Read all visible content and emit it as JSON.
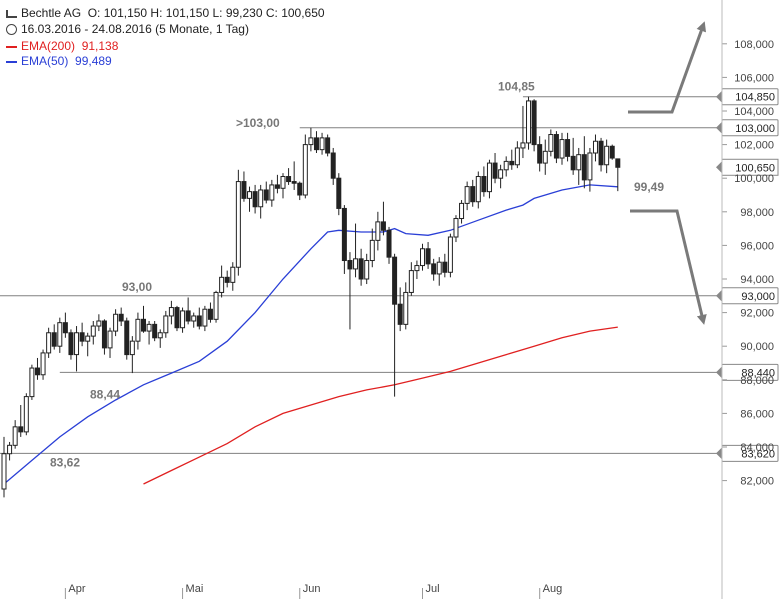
{
  "header": {
    "symbol": "Bechtle AG",
    "ohlc": "O: 101,150  H: 101,150  L: 99,230  C: 100,650",
    "range": "16.03.2016 - 24.08.2016 (5 Monate, 1 Tag)",
    "ema200_label": "EMA(200)",
    "ema200_value": "91,138",
    "ema50_label": "EMA(50)",
    "ema50_value": "99,489"
  },
  "chart_data": {
    "type": "candlestick",
    "ylim": [
      82,
      109
    ],
    "y_ticks": [
      "108,000",
      "106,000",
      "104,000",
      "102,000",
      "100,000",
      "98,000",
      "96,000",
      "94,000",
      "92,000",
      "90,000",
      "88,000",
      "86,000",
      "84,000",
      "82,000"
    ],
    "months": [
      "Apr",
      "Mai",
      "Jun",
      "Jul",
      "Aug"
    ],
    "hlines": [
      {
        "label": "104,850",
        "value": 104.85
      },
      {
        "label": "103,000",
        "value": 103.0
      },
      {
        "label": "93,000",
        "value": 93.0
      },
      {
        "label": "88,440",
        "value": 88.44
      },
      {
        "label": "83,620",
        "value": 83.62
      }
    ],
    "last_price": "100,650",
    "annotations": [
      "104,85",
      ">103,00",
      "93,00",
      "88,44",
      "83,62",
      "99,49"
    ],
    "colors": {
      "ema200": "#e02020",
      "ema50": "#2a3fd6",
      "candle": "#222222",
      "line": "#808080",
      "arrow": "#7a7a7a"
    },
    "candles": [
      [
        81.5,
        84.6,
        81.0,
        83.6
      ],
      [
        83.6,
        84.3,
        83.2,
        84.1
      ],
      [
        84.1,
        85.6,
        83.9,
        85.2
      ],
      [
        85.2,
        86.5,
        84.6,
        84.9
      ],
      [
        84.9,
        87.2,
        84.7,
        87.0
      ],
      [
        87.0,
        88.9,
        86.8,
        88.7
      ],
      [
        88.7,
        89.3,
        88.0,
        88.3
      ],
      [
        88.3,
        89.8,
        88.0,
        89.6
      ],
      [
        89.6,
        91.1,
        89.3,
        90.8
      ],
      [
        90.8,
        91.3,
        89.8,
        90.0
      ],
      [
        90.0,
        91.7,
        89.6,
        91.4
      ],
      [
        91.4,
        92.0,
        90.5,
        90.8
      ],
      [
        90.8,
        91.0,
        89.2,
        89.5
      ],
      [
        89.5,
        91.2,
        88.5,
        90.8
      ],
      [
        90.8,
        91.4,
        90.0,
        90.3
      ],
      [
        90.3,
        90.8,
        89.4,
        90.6
      ],
      [
        90.6,
        91.5,
        90.1,
        91.2
      ],
      [
        91.2,
        91.9,
        90.9,
        91.5
      ],
      [
        91.5,
        91.6,
        89.5,
        89.9
      ],
      [
        89.9,
        91.1,
        89.3,
        90.9
      ],
      [
        90.9,
        92.2,
        90.6,
        91.9
      ],
      [
        91.9,
        92.3,
        91.2,
        91.5
      ],
      [
        91.5,
        91.7,
        89.2,
        89.5
      ],
      [
        89.5,
        90.6,
        88.4,
        90.3
      ],
      [
        90.3,
        92.0,
        89.8,
        91.6
      ],
      [
        91.6,
        92.4,
        90.8,
        90.9
      ],
      [
        90.9,
        91.5,
        90.1,
        91.3
      ],
      [
        91.3,
        91.5,
        90.3,
        90.5
      ],
      [
        90.5,
        91.0,
        89.9,
        90.8
      ],
      [
        90.8,
        92.1,
        90.5,
        91.8
      ],
      [
        91.8,
        92.7,
        91.3,
        92.3
      ],
      [
        92.3,
        92.4,
        90.9,
        91.1
      ],
      [
        91.1,
        92.3,
        90.8,
        92.1
      ],
      [
        92.1,
        92.9,
        91.3,
        91.5
      ],
      [
        91.5,
        92.0,
        91.1,
        91.8
      ],
      [
        91.8,
        92.3,
        91.0,
        91.2
      ],
      [
        91.2,
        92.4,
        90.9,
        92.2
      ],
      [
        92.2,
        92.6,
        91.4,
        91.6
      ],
      [
        91.6,
        93.3,
        91.4,
        93.2
      ],
      [
        93.2,
        94.8,
        92.9,
        94.1
      ],
      [
        94.1,
        94.5,
        93.5,
        93.8
      ],
      [
        93.8,
        95.0,
        93.3,
        94.7
      ],
      [
        94.7,
        100.5,
        94.2,
        99.8
      ],
      [
        99.8,
        100.4,
        98.6,
        98.8
      ],
      [
        98.8,
        99.5,
        98.0,
        99.2
      ],
      [
        99.2,
        99.6,
        97.9,
        98.3
      ],
      [
        98.3,
        99.6,
        97.6,
        99.3
      ],
      [
        99.3,
        99.8,
        98.5,
        98.7
      ],
      [
        98.7,
        99.9,
        98.3,
        99.6
      ],
      [
        99.6,
        100.2,
        99.1,
        99.4
      ],
      [
        99.4,
        100.3,
        98.8,
        100.1
      ],
      [
        100.1,
        100.6,
        99.6,
        99.8
      ],
      [
        99.8,
        101.0,
        99.3,
        99.7
      ],
      [
        99.7,
        99.8,
        98.7,
        99.0
      ],
      [
        99.0,
        102.6,
        98.8,
        102.0
      ],
      [
        102.0,
        103.0,
        101.6,
        102.4
      ],
      [
        102.4,
        102.8,
        101.5,
        101.7
      ],
      [
        101.7,
        102.7,
        101.4,
        102.4
      ],
      [
        102.4,
        102.6,
        101.3,
        101.5
      ],
      [
        101.5,
        101.8,
        99.6,
        100.0
      ],
      [
        100.0,
        100.3,
        97.8,
        98.2
      ],
      [
        98.2,
        98.4,
        94.3,
        95.1
      ],
      [
        95.1,
        95.6,
        91.0,
        94.6
      ],
      [
        94.6,
        97.3,
        94.1,
        95.2
      ],
      [
        95.2,
        95.8,
        93.6,
        94.0
      ],
      [
        94.0,
        95.5,
        93.7,
        95.1
      ],
      [
        95.1,
        97.0,
        94.7,
        96.3
      ],
      [
        96.3,
        98.0,
        95.7,
        97.4
      ],
      [
        97.4,
        98.6,
        96.6,
        96.9
      ],
      [
        96.9,
        97.1,
        94.9,
        95.3
      ],
      [
        95.3,
        95.5,
        87.0,
        92.5
      ],
      [
        92.5,
        93.5,
        90.9,
        91.3
      ],
      [
        91.3,
        93.8,
        91.0,
        93.2
      ],
      [
        93.2,
        95.0,
        93.0,
        94.5
      ],
      [
        94.5,
        95.1,
        94.0,
        94.8
      ],
      [
        94.8,
        96.1,
        94.5,
        95.8
      ],
      [
        95.8,
        96.2,
        94.6,
        94.9
      ],
      [
        94.9,
        95.2,
        93.9,
        94.3
      ],
      [
        94.3,
        95.3,
        93.6,
        95.0
      ],
      [
        95.0,
        95.5,
        94.1,
        94.4
      ],
      [
        94.4,
        96.7,
        94.1,
        96.5
      ],
      [
        96.5,
        97.8,
        96.2,
        97.6
      ],
      [
        97.6,
        98.7,
        97.3,
        98.5
      ],
      [
        98.5,
        99.8,
        98.1,
        99.5
      ],
      [
        99.5,
        99.9,
        98.3,
        98.6
      ],
      [
        98.6,
        100.4,
        98.2,
        100.1
      ],
      [
        100.1,
        100.7,
        98.9,
        99.2
      ],
      [
        99.2,
        101.1,
        98.8,
        100.9
      ],
      [
        100.9,
        101.5,
        99.7,
        100.0
      ],
      [
        100.0,
        100.8,
        99.4,
        100.5
      ],
      [
        100.5,
        101.3,
        100.1,
        101.0
      ],
      [
        101.0,
        101.7,
        100.5,
        100.8
      ],
      [
        100.8,
        102.2,
        100.6,
        101.8
      ],
      [
        101.8,
        104.3,
        101.2,
        102.1
      ],
      [
        102.1,
        104.85,
        101.7,
        104.6
      ],
      [
        104.6,
        104.7,
        101.6,
        102.0
      ],
      [
        102.0,
        102.5,
        100.4,
        100.9
      ],
      [
        100.9,
        102.3,
        100.2,
        101.6
      ],
      [
        101.6,
        102.9,
        101.3,
        102.6
      ],
      [
        102.6,
        102.8,
        100.9,
        101.2
      ],
      [
        101.2,
        102.7,
        100.8,
        102.3
      ],
      [
        102.3,
        102.7,
        101.0,
        101.3
      ],
      [
        101.3,
        102.4,
        100.2,
        100.5
      ],
      [
        100.5,
        101.8,
        99.6,
        101.4
      ],
      [
        101.4,
        102.5,
        99.4,
        99.9
      ],
      [
        99.9,
        101.8,
        99.2,
        101.5
      ],
      [
        101.5,
        102.6,
        101.0,
        102.2
      ],
      [
        102.2,
        102.4,
        100.4,
        100.8
      ],
      [
        100.8,
        102.3,
        100.3,
        101.9
      ],
      [
        101.9,
        102.0,
        101.1,
        101.2
      ],
      [
        101.15,
        101.15,
        99.23,
        100.65
      ]
    ],
    "ema50": [
      [
        0,
        81.8
      ],
      [
        5,
        83.2
      ],
      [
        10,
        84.6
      ],
      [
        15,
        85.8
      ],
      [
        20,
        86.8
      ],
      [
        25,
        87.7
      ],
      [
        30,
        88.4
      ],
      [
        35,
        89.1
      ],
      [
        40,
        90.3
      ],
      [
        45,
        92.0
      ],
      [
        50,
        94.0
      ],
      [
        55,
        95.8
      ],
      [
        58,
        96.8
      ],
      [
        60,
        96.9
      ],
      [
        64,
        96.8
      ],
      [
        68,
        96.8
      ],
      [
        70,
        97.0
      ],
      [
        72,
        96.7
      ],
      [
        76,
        96.6
      ],
      [
        80,
        96.9
      ],
      [
        85,
        97.5
      ],
      [
        90,
        98.1
      ],
      [
        93,
        98.4
      ],
      [
        95,
        98.8
      ],
      [
        100,
        99.3
      ],
      [
        105,
        99.6
      ],
      [
        110,
        99.49
      ]
    ],
    "ema200": [
      [
        25,
        81.8
      ],
      [
        30,
        82.6
      ],
      [
        35,
        83.4
      ],
      [
        40,
        84.2
      ],
      [
        45,
        85.2
      ],
      [
        50,
        86.0
      ],
      [
        55,
        86.5
      ],
      [
        60,
        87.0
      ],
      [
        65,
        87.4
      ],
      [
        70,
        87.7
      ],
      [
        75,
        88.1
      ],
      [
        80,
        88.5
      ],
      [
        85,
        89.0
      ],
      [
        90,
        89.5
      ],
      [
        95,
        90.0
      ],
      [
        100,
        90.5
      ],
      [
        105,
        90.9
      ],
      [
        110,
        91.138
      ]
    ]
  }
}
